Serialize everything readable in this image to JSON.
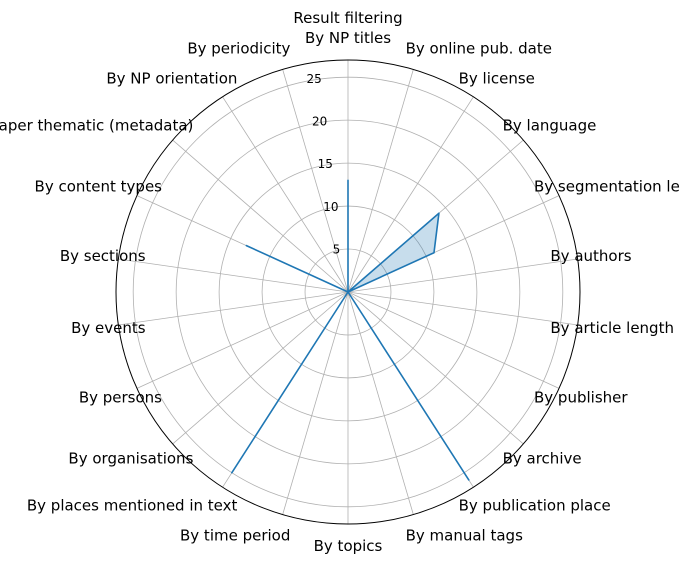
{
  "chart_data": {
    "type": "radar",
    "title": "Result filtering",
    "categories": [
      "By NP titles",
      "By online pub. date",
      "By license",
      "By language",
      "By segmentation level",
      "By authors",
      "By article length",
      "By publisher",
      "By archive",
      "By publication place",
      "By manual tags",
      "By topics",
      "By time period",
      "By places mentioned in text",
      "By organisations",
      "By persons",
      "By events",
      "By sections",
      "By content types",
      "By newspaper thematic (metadata)",
      "By NP orientation",
      "By periodicity"
    ],
    "series": [
      {
        "values": [
          13,
          0,
          0,
          14,
          11,
          0,
          0,
          0,
          0,
          26,
          0,
          0,
          0,
          25,
          0,
          0,
          0,
          0,
          13,
          0,
          0,
          0
        ],
        "color": "#1f77b4"
      }
    ],
    "rlim": [
      0,
      27
    ],
    "rticks": [
      5,
      10,
      15,
      20,
      25
    ],
    "grid": true,
    "legend": "none"
  }
}
